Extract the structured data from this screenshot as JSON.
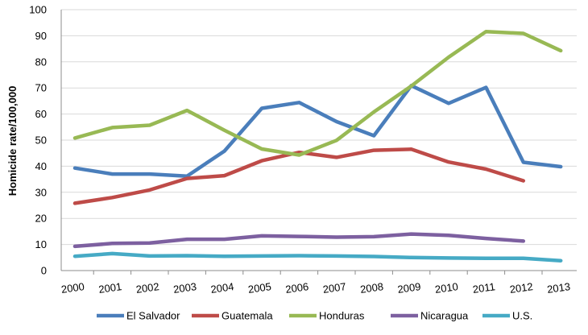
{
  "chart_data": {
    "type": "line",
    "title": "",
    "xlabel": "",
    "ylabel": "Homicide rate/100,000",
    "ylim": [
      0,
      100
    ],
    "yticks": [
      0,
      10,
      20,
      30,
      40,
      50,
      60,
      70,
      80,
      90,
      100
    ],
    "grid": true,
    "legend_position": "bottom",
    "x": [
      "2000",
      "2001",
      "2002",
      "2003",
      "2004",
      "2005",
      "2006",
      "2007",
      "2008",
      "2009",
      "2010",
      "2011",
      "2012",
      "2013"
    ],
    "series": [
      {
        "name": "El Salvador",
        "color": "#4a7ebb",
        "values": [
          39.3,
          37,
          37,
          36.2,
          45.8,
          62.2,
          64.4,
          57.1,
          51.7,
          70.9,
          64.1,
          70.2,
          41.5,
          39.8
        ]
      },
      {
        "name": "Guatemala",
        "color": "#be4b48",
        "values": [
          25.8,
          28,
          30.9,
          35.3,
          36.4,
          42.1,
          45.3,
          43.4,
          46.1,
          46.5,
          41.6,
          38.9,
          34.4,
          null
        ]
      },
      {
        "name": "Honduras",
        "color": "#98b954",
        "values": [
          50.8,
          54.8,
          55.7,
          61.4,
          53.8,
          46.6,
          44.3,
          49.9,
          60.8,
          70.7,
          81.8,
          91.6,
          90.9,
          84.3
        ]
      },
      {
        "name": "Nicaragua",
        "color": "#7d60a0",
        "values": [
          9.3,
          10.4,
          10.6,
          12,
          12,
          13.3,
          13.1,
          12.8,
          13,
          14,
          13.5,
          12.3,
          11.3,
          null
        ]
      },
      {
        "name": "U.S.",
        "color": "#46aac5",
        "values": [
          5.5,
          6.5,
          5.6,
          5.7,
          5.5,
          5.6,
          5.7,
          5.6,
          5.4,
          5,
          4.8,
          4.7,
          4.7,
          3.8
        ]
      }
    ]
  }
}
